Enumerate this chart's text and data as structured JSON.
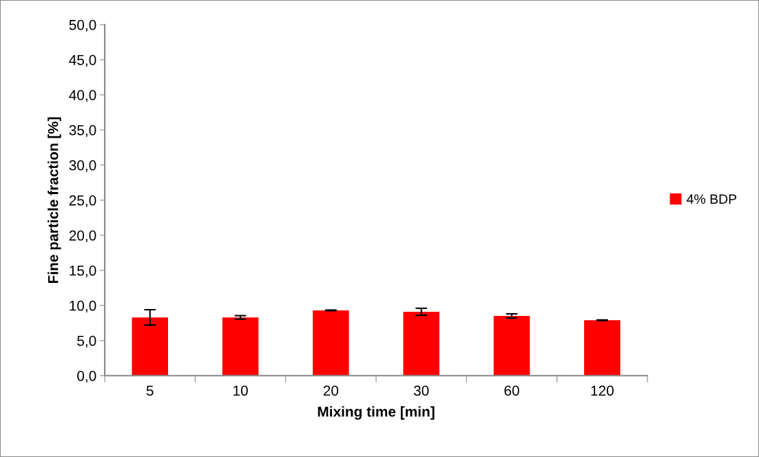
{
  "chart_data": {
    "type": "bar",
    "xlabel": "Mixing time [min]",
    "ylabel": "Fine particle fraction [%]",
    "categories": [
      "5",
      "10",
      "20",
      "30",
      "60",
      "120"
    ],
    "series": [
      {
        "name": "4% BDP",
        "color": "#ff0000",
        "values": [
          8.3,
          8.3,
          9.3,
          9.1,
          8.5,
          7.9
        ],
        "errors": [
          1.1,
          0.25,
          0.05,
          0.5,
          0.3,
          0.05
        ]
      }
    ],
    "ylim": [
      0,
      50
    ],
    "yticks": [
      {
        "value": 0,
        "label": "0,0"
      },
      {
        "value": 5,
        "label": "5,0"
      },
      {
        "value": 10,
        "label": "10,0"
      },
      {
        "value": 15,
        "label": "15,0"
      },
      {
        "value": 20,
        "label": "20,0"
      },
      {
        "value": 25,
        "label": "25,0"
      },
      {
        "value": 30,
        "label": "30,0"
      },
      {
        "value": 35,
        "label": "35,0"
      },
      {
        "value": 40,
        "label": "40,0"
      },
      {
        "value": 45,
        "label": "45,0"
      },
      {
        "value": 50,
        "label": "50,0"
      }
    ],
    "grid": false,
    "legend": "right"
  }
}
